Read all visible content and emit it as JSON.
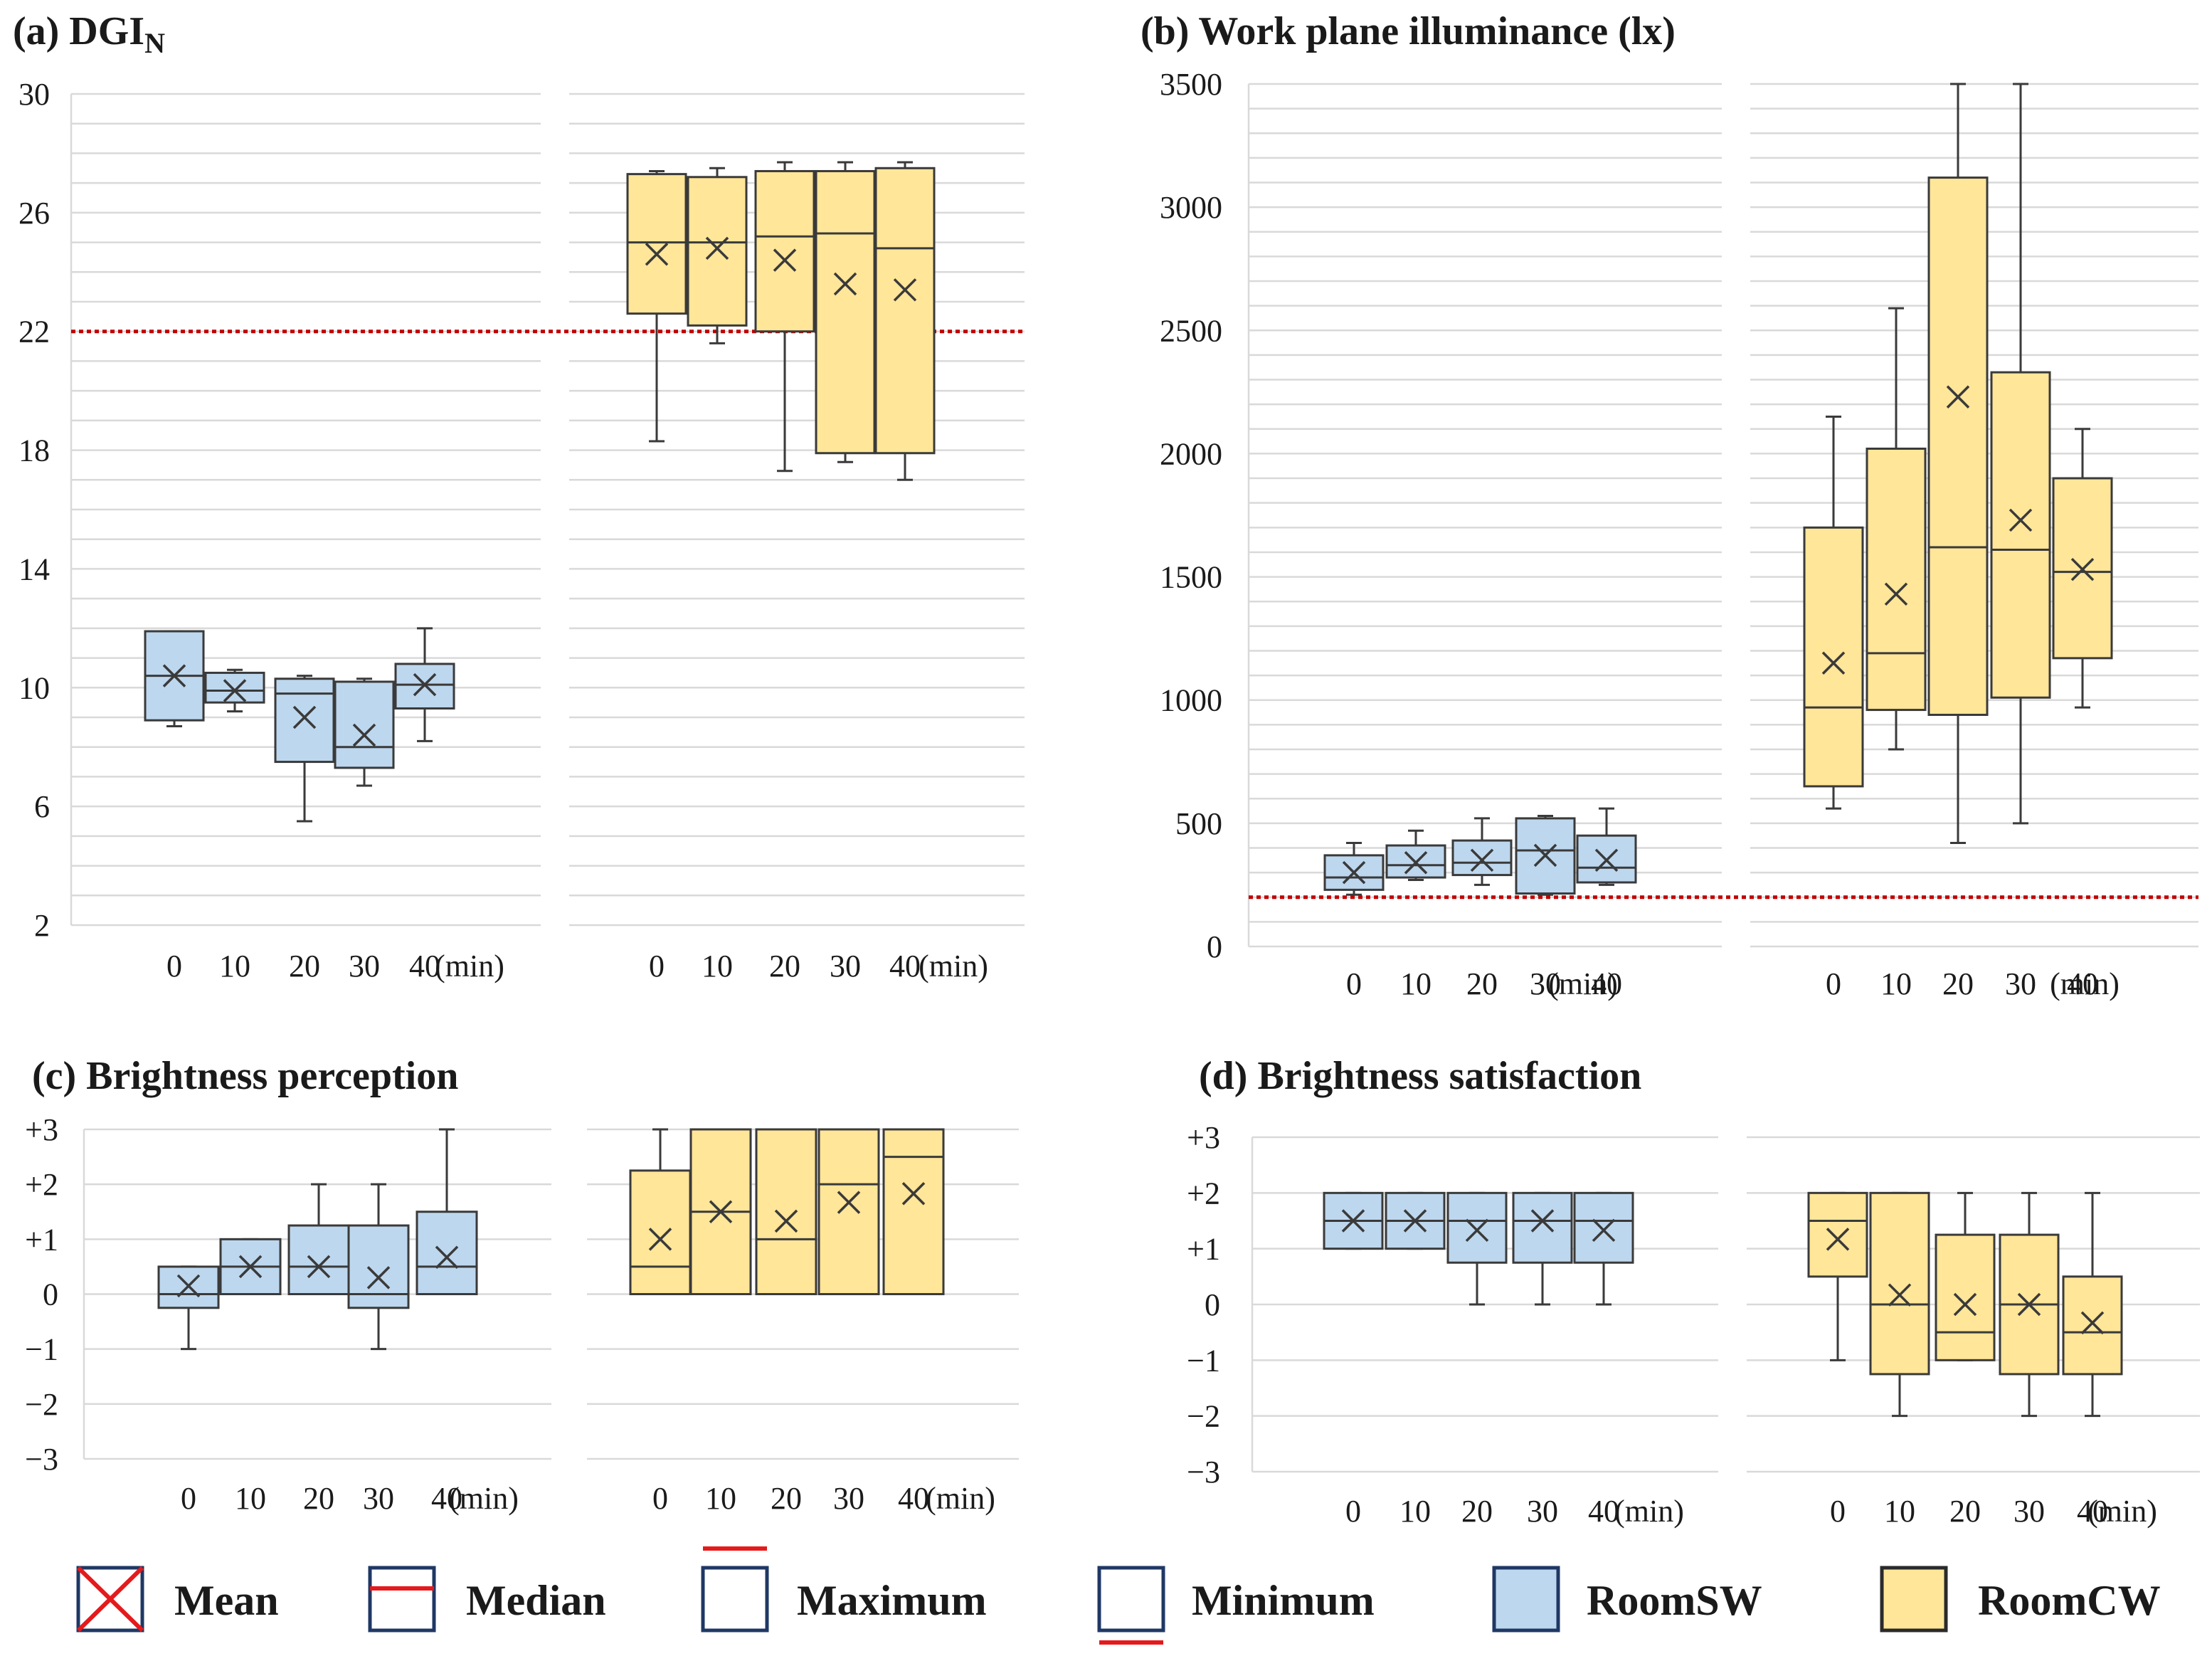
{
  "figure": {
    "unit_label": "(min)",
    "colors": {
      "RoomSW": "#BDD7EE",
      "RoomCW": "#FFE699",
      "box_edge": "#3A3A3A",
      "grid": "#D9D9D9",
      "threshold": "#C00000",
      "legend_accent": "#E41A1C",
      "legend_edge": "#1F3864"
    }
  },
  "legend": [
    {
      "key": "mean",
      "label": "Mean",
      "icon": "mean-x-icon"
    },
    {
      "key": "median",
      "label": "Median",
      "icon": "median-line-icon"
    },
    {
      "key": "maximum",
      "label": "Maximum",
      "icon": "maximum-whisker-icon"
    },
    {
      "key": "minimum",
      "label": "Minimum",
      "icon": "minimum-whisker-icon"
    },
    {
      "key": "roomsw",
      "label": "RoomSW",
      "icon": "roomsw-swatch-icon"
    },
    {
      "key": "roomcw",
      "label": "RoomCW",
      "icon": "roomcw-swatch-icon"
    }
  ],
  "chart_data": [
    {
      "id": "a",
      "type": "boxplot",
      "title_main": "(a) DGI",
      "title_sub": "N",
      "ylim": [
        2,
        30
      ],
      "yticks": [
        2,
        6,
        10,
        14,
        18,
        22,
        26,
        30
      ],
      "ytick_labels": [
        "2",
        "6",
        "10",
        "14",
        "18",
        "22",
        "26",
        "30"
      ],
      "minor_step": 1,
      "threshold": 22,
      "categories": [
        "0",
        "10",
        "20",
        "30",
        "40"
      ],
      "series": [
        {
          "name": "RoomSW",
          "min": [
            8.7,
            9.2,
            5.5,
            6.7,
            8.2
          ],
          "q1": [
            8.9,
            9.5,
            7.5,
            7.3,
            9.3
          ],
          "median": [
            10.4,
            9.9,
            9.8,
            8.0,
            10.1
          ],
          "q3": [
            11.9,
            10.5,
            10.3,
            10.2,
            10.8
          ],
          "max": [
            11.9,
            10.6,
            10.4,
            10.3,
            12.0
          ],
          "mean": [
            10.4,
            9.9,
            9.0,
            8.4,
            10.1
          ]
        },
        {
          "name": "RoomCW",
          "min": [
            18.3,
            21.6,
            17.3,
            17.6,
            17.0
          ],
          "q1": [
            22.6,
            22.2,
            22.0,
            17.9,
            17.9
          ],
          "median": [
            25.0,
            25.0,
            25.2,
            25.3,
            24.8
          ],
          "q3": [
            27.3,
            27.2,
            27.4,
            27.4,
            27.5
          ],
          "max": [
            27.4,
            27.5,
            27.7,
            27.7,
            27.7
          ],
          "mean": [
            24.6,
            24.8,
            24.4,
            23.6,
            23.4
          ]
        }
      ]
    },
    {
      "id": "b",
      "type": "boxplot",
      "title_main": "(b) Work plane illuminance (lx)",
      "title_sub": "",
      "ylim": [
        0,
        3500
      ],
      "yticks": [
        0,
        500,
        1000,
        1500,
        2000,
        2500,
        3000,
        3500
      ],
      "ytick_labels": [
        "0",
        "500",
        "1000",
        "1500",
        "2000",
        "2500",
        "3000",
        "3500"
      ],
      "minor_step": 100,
      "threshold": 200,
      "categories": [
        "0",
        "10",
        "20",
        "30",
        "40"
      ],
      "series": [
        {
          "name": "RoomSW",
          "min": [
            210,
            270,
            250,
            210,
            250
          ],
          "q1": [
            230,
            280,
            290,
            215,
            260
          ],
          "median": [
            280,
            330,
            340,
            390,
            320
          ],
          "q3": [
            370,
            410,
            430,
            520,
            450
          ],
          "max": [
            420,
            470,
            520,
            530,
            560
          ],
          "mean": [
            300,
            340,
            350,
            370,
            350
          ]
        },
        {
          "name": "RoomCW",
          "min": [
            560,
            800,
            420,
            500,
            970
          ],
          "q1": [
            650,
            960,
            940,
            1010,
            1170
          ],
          "median": [
            970,
            1190,
            1620,
            1610,
            1520
          ],
          "q3": [
            1700,
            2020,
            3120,
            2330,
            1900
          ],
          "max": [
            2150,
            2590,
            3500,
            3500,
            2100
          ],
          "mean": [
            1150,
            1430,
            2230,
            1730,
            1530
          ]
        }
      ]
    },
    {
      "id": "c",
      "type": "boxplot",
      "title_main": "(c) Brightness perception",
      "title_sub": "",
      "ylim": [
        -3,
        3
      ],
      "yticks": [
        -3,
        -2,
        -1,
        0,
        1,
        2,
        3
      ],
      "ytick_labels": [
        "−3",
        "−2",
        "−1",
        "0",
        "+1",
        "+2",
        "+3"
      ],
      "minor_step": 1,
      "threshold": null,
      "categories": [
        "0",
        "10",
        "20",
        "30",
        "40"
      ],
      "series": [
        {
          "name": "RoomSW",
          "min": [
            -1,
            0,
            0,
            -1,
            0
          ],
          "q1": [
            -0.25,
            0,
            0,
            -0.25,
            0
          ],
          "median": [
            0,
            0.5,
            0.5,
            0,
            0.5
          ],
          "q3": [
            0.5,
            1,
            1.25,
            1.25,
            1.5
          ],
          "max": [
            0.5,
            1,
            2,
            2,
            3
          ],
          "mean": [
            0.15,
            0.5,
            0.5,
            0.3,
            0.67
          ]
        },
        {
          "name": "RoomCW",
          "min": [
            0,
            0,
            0,
            0,
            0
          ],
          "q1": [
            0,
            0,
            0,
            0,
            0
          ],
          "median": [
            0.5,
            1.5,
            1,
            2,
            2.5
          ],
          "q3": [
            2.25,
            3,
            3,
            3,
            3
          ],
          "max": [
            3,
            3,
            3,
            3,
            3
          ],
          "mean": [
            1.0,
            1.5,
            1.33,
            1.67,
            1.83
          ]
        }
      ]
    },
    {
      "id": "d",
      "type": "boxplot",
      "title_main": "(d) Brightness satisfaction",
      "title_sub": "",
      "ylim": [
        -3,
        3
      ],
      "yticks": [
        -3,
        -2,
        -1,
        0,
        1,
        2,
        3
      ],
      "ytick_labels": [
        "−3",
        "−2",
        "−1",
        "0",
        "+1",
        "+2",
        "+3"
      ],
      "minor_step": 1,
      "threshold": null,
      "categories": [
        "0",
        "10",
        "20",
        "30",
        "40"
      ],
      "series": [
        {
          "name": "RoomSW",
          "min": [
            1,
            1,
            0,
            0,
            0
          ],
          "q1": [
            1,
            1,
            0.75,
            0.75,
            0.75
          ],
          "median": [
            1.5,
            1.5,
            1.5,
            1.5,
            1.5
          ],
          "q3": [
            2,
            2,
            2,
            2,
            2
          ],
          "max": [
            2,
            2,
            2,
            2,
            2
          ],
          "mean": [
            1.5,
            1.5,
            1.33,
            1.5,
            1.33
          ]
        },
        {
          "name": "RoomCW",
          "min": [
            -1,
            -2,
            -1,
            -2,
            -2
          ],
          "q1": [
            0.5,
            -1.25,
            -1,
            -1.25,
            -1.25
          ],
          "median": [
            1.5,
            0,
            -0.5,
            0,
            -0.5
          ],
          "q3": [
            2,
            2,
            1.25,
            1.25,
            0.5
          ],
          "max": [
            2,
            2,
            2,
            2,
            2
          ],
          "mean": [
            1.17,
            0.17,
            0.0,
            0.0,
            -0.33
          ]
        }
      ]
    }
  ]
}
